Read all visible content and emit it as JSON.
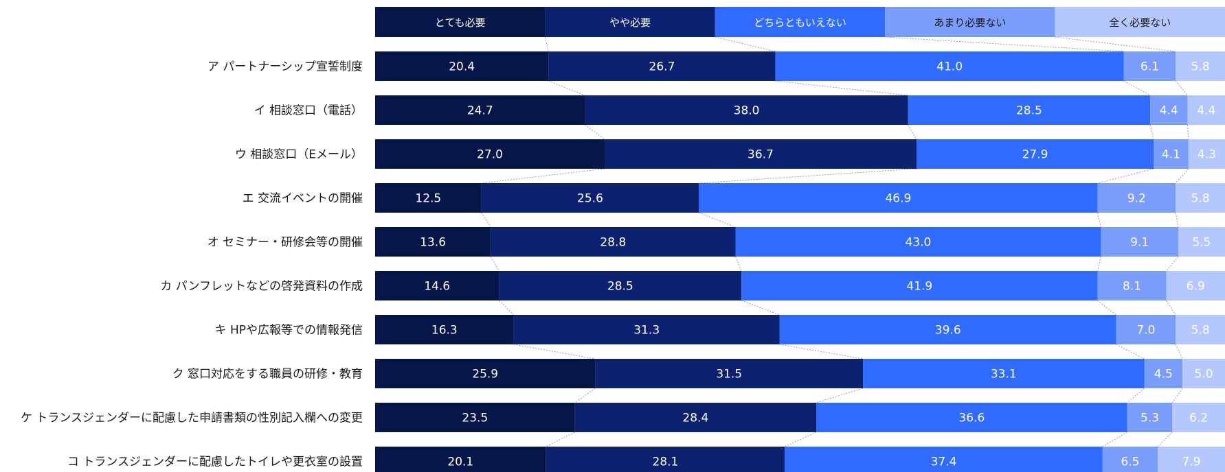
{
  "chart_data": {
    "type": "bar",
    "orientation": "horizontal",
    "stacked": true,
    "percent_stacked": true,
    "categories": [
      "ア パートナーシップ宣誓制度",
      "イ 相談窓口（電話）",
      "ウ 相談窓口（Eメール）",
      "エ 交流イベントの開催",
      "オ セミナー・研修会等の開催",
      "カ パンフレットなどの啓発資料の作成",
      "キ HPや広報等での情報発信",
      "ク 窓口対応をする職員の研修・教育",
      "ケ トランスジェンダーに配慮した申請書類の性別記入欄への変更",
      "コ トランスジェンダーに配慮したトイレや更衣室の設置"
    ],
    "series": [
      {
        "name": "とても必要",
        "color": "#071649",
        "text_color": "#ffffff",
        "values": [
          20.4,
          24.7,
          27.0,
          12.5,
          13.6,
          14.6,
          16.3,
          25.9,
          23.5,
          20.1
        ]
      },
      {
        "name": "やや必要",
        "color": "#0c2270",
        "text_color": "#ffffff",
        "values": [
          26.7,
          38.0,
          36.7,
          25.6,
          28.8,
          28.5,
          31.3,
          31.5,
          28.4,
          28.1
        ]
      },
      {
        "name": "どちらともいえない",
        "color": "#2f6bff",
        "text_color": "#ffffff",
        "values": [
          41.0,
          28.5,
          27.9,
          46.9,
          43.0,
          41.9,
          39.6,
          33.1,
          36.6,
          37.4
        ]
      },
      {
        "name": "あまり必要ない",
        "color": "#7a9dfb",
        "text_color": "#1a1a1a",
        "values": [
          6.1,
          4.4,
          4.1,
          9.2,
          9.1,
          8.1,
          7.0,
          4.5,
          5.3,
          6.5
        ]
      },
      {
        "name": "全く必要ない",
        "color": "#b5c8fd",
        "text_color": "#1a1a1a",
        "values": [
          5.8,
          4.4,
          4.3,
          5.8,
          5.5,
          6.9,
          5.8,
          5.0,
          6.2,
          7.9
        ]
      }
    ],
    "legend_position": "top",
    "connector_lines": true,
    "grid": false
  }
}
